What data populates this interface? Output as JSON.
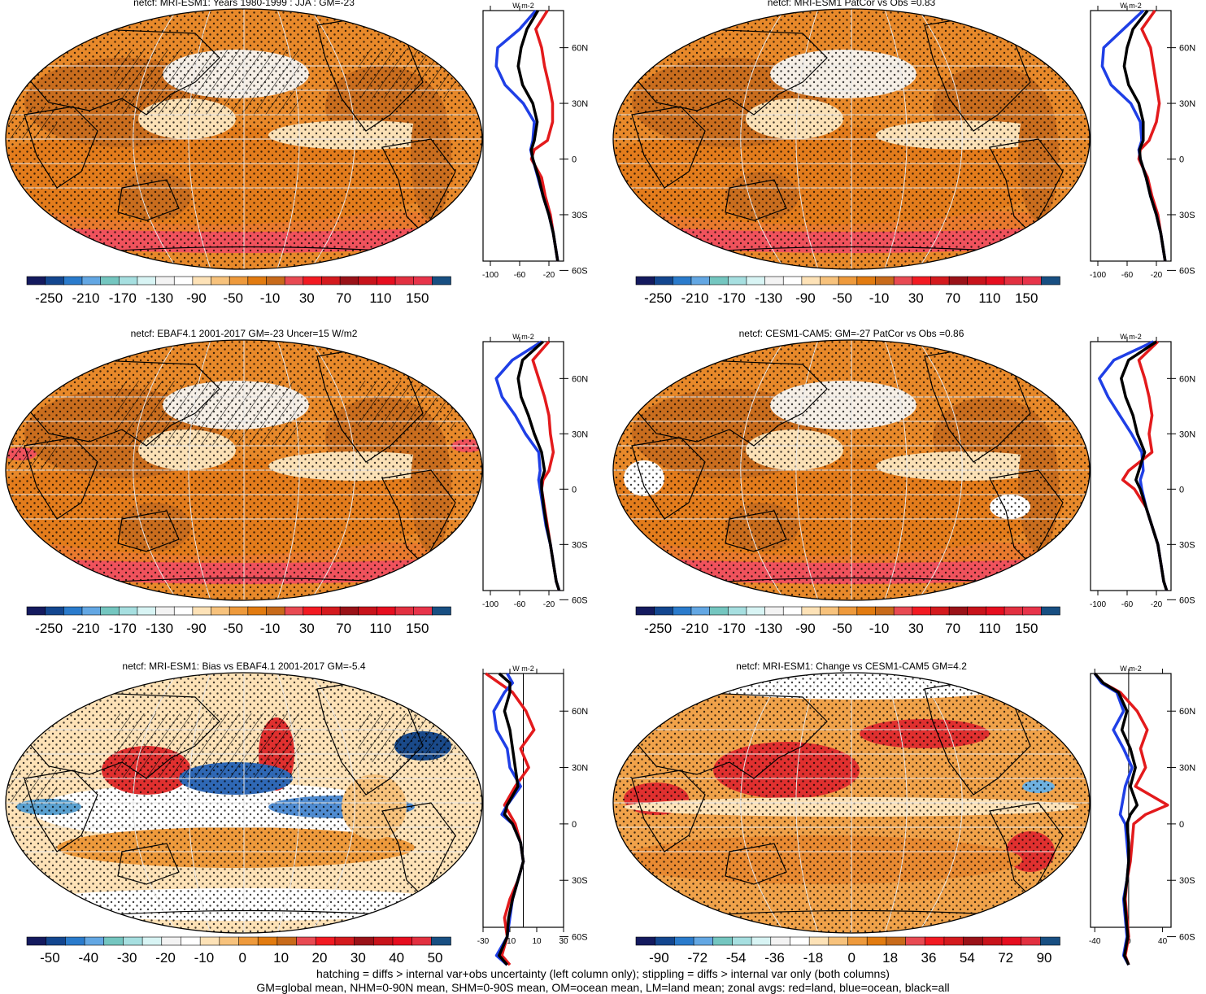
{
  "palette": {
    "abs": [
      "#141a5e",
      "#13468f",
      "#2a7bcc",
      "#63a7e3",
      "#74c6c0",
      "#a6dfe0",
      "#d8f4f4",
      "#f3f3f3",
      "#ffffff",
      "#fde2b7",
      "#f7c27c",
      "#ee9a3c",
      "#e27b10",
      "#c86a1a",
      "#e84a52",
      "#f21a22",
      "#d41a1e",
      "#9a1218",
      "#c8131b",
      "#e60e1f",
      "#e23040",
      "#e7344a",
      "#184f82"
    ],
    "diff": [
      "#141a5e",
      "#13468f",
      "#2a7bcc",
      "#63a7e3",
      "#74c6c0",
      "#a6dfe0",
      "#d8f4f4",
      "#f3f3f3",
      "#ffffff",
      "#fde2b7",
      "#f7c27c",
      "#ee9a3c",
      "#e27b10",
      "#c86a1a",
      "#e84a52",
      "#f21a22",
      "#d41a1e",
      "#9a1218",
      "#c8131b",
      "#e60e1f",
      "#e23040",
      "#184f82"
    ],
    "land": "#e31a1c",
    "ocean": "#1f3fe6",
    "all": "#000000"
  },
  "chart_data": [
    {
      "type": "heatmap",
      "title": "netcf: MRI-ESM1: Years 1980-1999 : JJA : GM=-23",
      "variant": "abs-model",
      "colorbar": {
        "labels": [
          "-250",
          "-210",
          "-170",
          "-130",
          "-90",
          "-50",
          "-10",
          "30",
          "70",
          "110",
          "150"
        ]
      },
      "zonal": {
        "xlim": [
          -110,
          0
        ],
        "xticks": [
          "-100",
          "-60",
          "-20"
        ],
        "yticks": [
          "60N",
          "30N",
          "0",
          "30S",
          "60S"
        ],
        "units": "W m-2",
        "lat": [
          80,
          70,
          60,
          50,
          40,
          30,
          20,
          10,
          5,
          0,
          -10,
          -20,
          -30,
          -40,
          -50,
          -55
        ],
        "land": [
          -22,
          -38,
          -30,
          -26,
          -20,
          -15,
          -15,
          -22,
          -40,
          -44,
          -30,
          -25,
          -18,
          -14,
          -10,
          -8
        ],
        "ocean": [
          -38,
          -60,
          -90,
          -92,
          -80,
          -55,
          -40,
          -42,
          -45,
          -42,
          -35,
          -28,
          -20,
          -14,
          -10,
          -8
        ],
        "all": [
          -35,
          -50,
          -58,
          -62,
          -56,
          -42,
          -36,
          -40,
          -44,
          -42,
          -34,
          -28,
          -20,
          -14,
          -10,
          -8
        ]
      }
    },
    {
      "type": "heatmap",
      "title": "netcf: MRI-ESM1 PatCor vs Obs =0.83",
      "variant": "abs-model",
      "colorbar": {
        "labels": [
          "-250",
          "-210",
          "-170",
          "-130",
          "-90",
          "-50",
          "-10",
          "30",
          "70",
          "110",
          "150"
        ]
      },
      "zonal": {
        "xlim": [
          -110,
          0
        ],
        "xticks": [
          "-100",
          "-60",
          "-20"
        ],
        "yticks": [
          "60N",
          "30N",
          "0",
          "30S",
          "60S"
        ],
        "units": "W m-2",
        "lat": [
          80,
          70,
          60,
          50,
          40,
          30,
          20,
          10,
          5,
          0,
          -10,
          -20,
          -30,
          -40,
          -50,
          -55
        ],
        "land": [
          -22,
          -40,
          -28,
          -24,
          -20,
          -16,
          -20,
          -30,
          -42,
          -44,
          -32,
          -26,
          -18,
          -14,
          -10,
          -8
        ],
        "ocean": [
          -38,
          -65,
          -92,
          -94,
          -82,
          -55,
          -42,
          -40,
          -44,
          -42,
          -34,
          -28,
          -20,
          -14,
          -10,
          -8
        ],
        "all": [
          -32,
          -52,
          -60,
          -64,
          -58,
          -44,
          -38,
          -38,
          -43,
          -42,
          -34,
          -28,
          -20,
          -14,
          -10,
          -8
        ]
      }
    },
    {
      "type": "heatmap",
      "title": "netcf: EBAF4.1 2001-2017 GM=-23 Uncer=15 W/m2",
      "variant": "abs-obs",
      "colorbar": {
        "labels": [
          "-250",
          "-210",
          "-170",
          "-130",
          "-90",
          "-50",
          "-10",
          "30",
          "70",
          "110",
          "150"
        ]
      },
      "zonal": {
        "xlim": [
          -110,
          0
        ],
        "xticks": [
          "-100",
          "-60",
          "-20"
        ],
        "yticks": [
          "60N",
          "30N",
          "0",
          "30S",
          "60S"
        ],
        "units": "W m-2",
        "lat": [
          80,
          70,
          60,
          50,
          40,
          30,
          20,
          10,
          5,
          0,
          -10,
          -20,
          -30,
          -40,
          -50,
          -55
        ],
        "land": [
          -20,
          -42,
          -34,
          -26,
          -20,
          -18,
          -14,
          -20,
          -28,
          -30,
          -26,
          -22,
          -18,
          -14,
          -10,
          -6
        ],
        "ocean": [
          -30,
          -70,
          -92,
          -84,
          -66,
          -52,
          -34,
          -32,
          -34,
          -32,
          -28,
          -24,
          -18,
          -14,
          -10,
          -6
        ],
        "all": [
          -28,
          -56,
          -62,
          -58,
          -48,
          -40,
          -30,
          -26,
          -30,
          -30,
          -27,
          -23,
          -18,
          -14,
          -10,
          -6
        ]
      }
    },
    {
      "type": "heatmap",
      "title": "netcf: CESM1-CAM5: GM=-27 PatCor vs Obs =0.86",
      "variant": "abs-model2",
      "colorbar": {
        "labels": [
          "-250",
          "-210",
          "-170",
          "-130",
          "-90",
          "-50",
          "-10",
          "30",
          "70",
          "110",
          "150"
        ]
      },
      "zonal": {
        "xlim": [
          -110,
          0
        ],
        "xticks": [
          "-100",
          "-60",
          "-20"
        ],
        "yticks": [
          "60N",
          "30N",
          "0",
          "30S",
          "60S"
        ],
        "units": "W m-2",
        "lat": [
          80,
          70,
          60,
          50,
          40,
          30,
          20,
          10,
          5,
          0,
          -10,
          -20,
          -30,
          -40,
          -50,
          -55
        ],
        "land": [
          -18,
          -44,
          -36,
          -30,
          -26,
          -30,
          -26,
          -58,
          -66,
          -50,
          -34,
          -26,
          -18,
          -14,
          -10,
          -6
        ],
        "ocean": [
          -24,
          -78,
          -98,
          -86,
          -70,
          -54,
          -40,
          -38,
          -42,
          -40,
          -34,
          -26,
          -18,
          -14,
          -10,
          -6
        ],
        "all": [
          -20,
          -58,
          -68,
          -62,
          -52,
          -46,
          -36,
          -44,
          -48,
          -42,
          -34,
          -26,
          -18,
          -14,
          -10,
          -6
        ]
      }
    },
    {
      "type": "heatmap",
      "title": "netcf: MRI-ESM1: Bias vs EBAF4.1 2001-2017 GM=-5.4",
      "variant": "bias",
      "colorbar": {
        "labels": [
          "-50",
          "-40",
          "-30",
          "-20",
          "-10",
          "0",
          "10",
          "20",
          "30",
          "40",
          "50"
        ]
      },
      "zonal": {
        "xlim": [
          -30,
          30
        ],
        "xticks": [
          "-30",
          "-10",
          "10",
          "30"
        ],
        "yticks": [
          "60N",
          "30N",
          "0",
          "30S",
          "60S"
        ],
        "units": "W m-2",
        "lat": [
          80,
          75,
          70,
          60,
          50,
          40,
          30,
          20,
          10,
          5,
          0,
          -10,
          -20,
          -30,
          -40,
          -50,
          -60,
          -70,
          -75
        ],
        "land": [
          -28,
          -18,
          -8,
          2,
          8,
          -2,
          4,
          -6,
          -14,
          -10,
          -6,
          -2,
          0,
          -4,
          -10,
          -14,
          -12,
          -16,
          -10
        ],
        "ocean": [
          -12,
          -8,
          -14,
          -22,
          -20,
          -12,
          -10,
          -2,
          -12,
          -16,
          -8,
          -2,
          0,
          -4,
          -8,
          -10,
          -12,
          -20,
          -12
        ],
        "all": [
          -18,
          -10,
          -10,
          -14,
          -10,
          -8,
          -6,
          -4,
          -12,
          -14,
          -8,
          -2,
          0,
          -4,
          -8,
          -11,
          -12,
          -18,
          -12
        ]
      }
    },
    {
      "type": "heatmap",
      "title": "netcf: MRI-ESM1: Change vs CESM1-CAM5 GM=4.2",
      "variant": "change",
      "colorbar": {
        "labels": [
          "-90",
          "-72",
          "-54",
          "-36",
          "-18",
          "0",
          "18",
          "36",
          "54",
          "72",
          "90"
        ]
      },
      "zonal": {
        "xlim": [
          -45,
          50
        ],
        "xticks": [
          "-40",
          "0",
          "40"
        ],
        "yticks": [
          "60N",
          "30N",
          "0",
          "30S",
          "60S"
        ],
        "units": "W m-2",
        "lat": [
          80,
          75,
          70,
          60,
          50,
          40,
          30,
          20,
          10,
          5,
          0,
          -10,
          -20,
          -30,
          -40,
          -50,
          -60,
          -70,
          -75
        ],
        "land": [
          -40,
          -30,
          -10,
          10,
          22,
          14,
          20,
          8,
          46,
          20,
          6,
          4,
          2,
          -2,
          -4,
          -2,
          0,
          -4,
          0
        ],
        "ocean": [
          -40,
          -32,
          -14,
          -6,
          -18,
          -6,
          4,
          -4,
          -8,
          -10,
          -4,
          -2,
          0,
          -2,
          -6,
          -4,
          -2,
          -6,
          0
        ],
        "all": [
          -40,
          -30,
          -12,
          -2,
          -8,
          2,
          8,
          2,
          10,
          2,
          -2,
          0,
          0,
          -2,
          -5,
          -3,
          -1,
          -5,
          0
        ]
      }
    }
  ],
  "footer": {
    "line1": "hatching = diffs > internal var+obs uncertainty (left column only); stippling = diffs > internal var only (both columns)",
    "line2": "GM=global mean, NHM=0-90N mean, SHM=0-90S mean, OM=ocean mean, LM=land mean; zonal avgs: red=land, blue=ocean, black=all"
  }
}
